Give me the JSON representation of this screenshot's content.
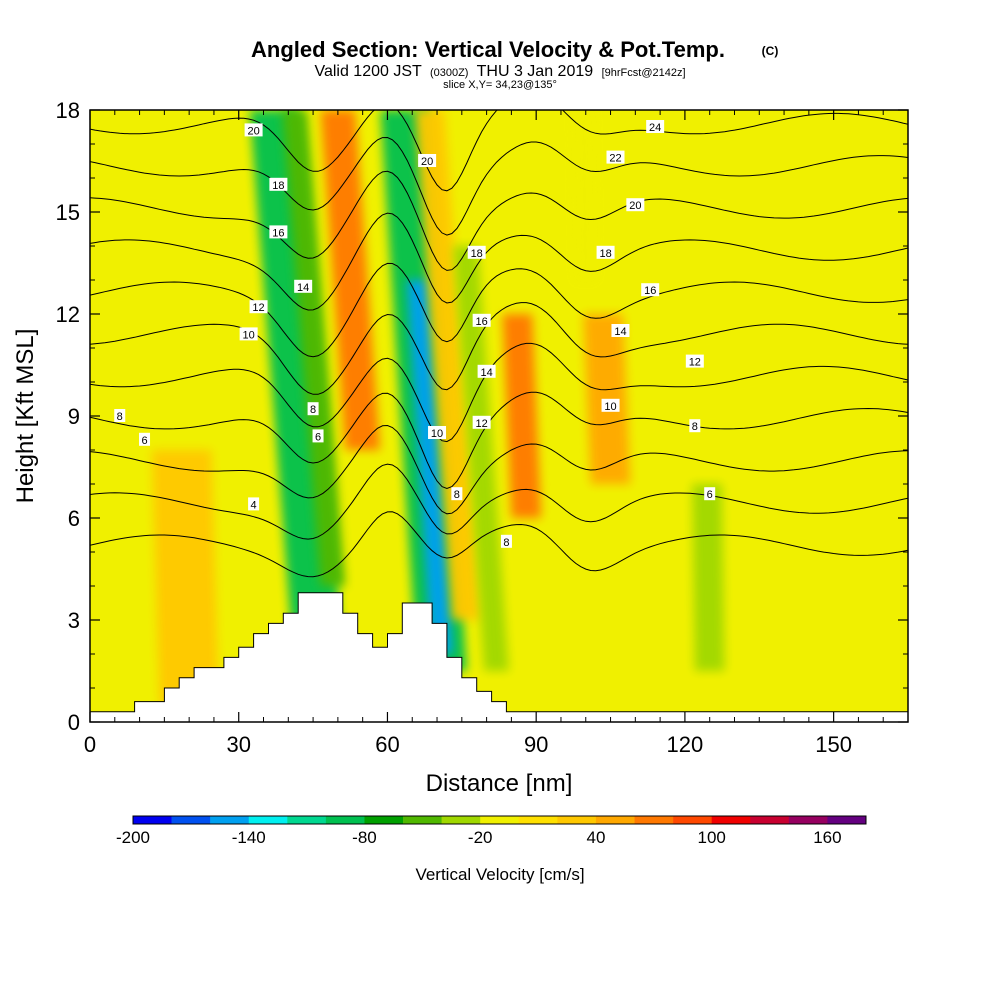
{
  "chart_data": {
    "type": "heatmap",
    "title": "Angled Section: Vertical Velocity & Pot.Temp.",
    "title_units": "(C)",
    "subtitle_parts": [
      "Valid 1200 JST",
      "(0300Z)",
      "THU 3 Jan 2019",
      "[9hrFcst@2142z]"
    ],
    "slice_label": "slice X,Y= 34,23@135°",
    "xlabel": "Distance [nm]",
    "ylabel": "Height [Kft MSL]",
    "xlim": [
      0,
      165
    ],
    "ylim": [
      0,
      18
    ],
    "x_ticks": [
      "0",
      "30",
      "60",
      "90",
      "120",
      "150"
    ],
    "x_tick_values": [
      0,
      30,
      60,
      90,
      120,
      150
    ],
    "y_ticks": [
      "0",
      "3",
      "6",
      "9",
      "12",
      "15",
      "18"
    ],
    "y_tick_values": [
      0,
      3,
      6,
      9,
      12,
      15,
      18
    ],
    "colorbar": {
      "label": "Vertical Velocity [cm/s]",
      "min": -200,
      "max": 180,
      "step": 20,
      "tick_labels": [
        "-200",
        "-140",
        "-80",
        "-20",
        "40",
        "100",
        "160"
      ],
      "tick_values": [
        -200,
        -140,
        -80,
        -20,
        40,
        100,
        160
      ],
      "colors": [
        "#0000f0",
        "#0050f0",
        "#00a0f0",
        "#00f0f0",
        "#00d890",
        "#00c050",
        "#00a000",
        "#50b800",
        "#a0d800",
        "#f0f000",
        "#ffe000",
        "#ffc800",
        "#ffa800",
        "#ff7800",
        "#ff4800",
        "#f00000",
        "#c80030",
        "#960060",
        "#640080"
      ]
    },
    "terrain_kft": [
      [
        0,
        0.3
      ],
      [
        9,
        0.3
      ],
      [
        9,
        0.6
      ],
      [
        15,
        0.6
      ],
      [
        15,
        1
      ],
      [
        18,
        1
      ],
      [
        18,
        1.3
      ],
      [
        21,
        1.3
      ],
      [
        21,
        1.6
      ],
      [
        27,
        1.6
      ],
      [
        27,
        1.9
      ],
      [
        30,
        1.9
      ],
      [
        30,
        2.2
      ],
      [
        33,
        2.2
      ],
      [
        33,
        2.6
      ],
      [
        36,
        2.6
      ],
      [
        36,
        2.9
      ],
      [
        39,
        2.9
      ],
      [
        39,
        3.2
      ],
      [
        42,
        3.2
      ],
      [
        42,
        3.8
      ],
      [
        51,
        3.8
      ],
      [
        51,
        3.2
      ],
      [
        54,
        3.2
      ],
      [
        54,
        2.6
      ],
      [
        57,
        2.6
      ],
      [
        57,
        2.2
      ],
      [
        60,
        2.2
      ],
      [
        60,
        2.6
      ],
      [
        63,
        2.6
      ],
      [
        63,
        3.5
      ],
      [
        69,
        3.5
      ],
      [
        69,
        2.9
      ],
      [
        72,
        2.9
      ],
      [
        72,
        1.9
      ],
      [
        75,
        1.9
      ],
      [
        75,
        1.3
      ],
      [
        78,
        1.3
      ],
      [
        78,
        0.9
      ],
      [
        81,
        0.9
      ],
      [
        81,
        0.6
      ],
      [
        84,
        0.6
      ],
      [
        84,
        0.3
      ],
      [
        165,
        0.3
      ]
    ],
    "velocity_features": [
      {
        "x": 46,
        "w": 5,
        "z0": 2.0,
        "z1": 18,
        "tilt": 0.55,
        "value": -90
      },
      {
        "x": 49,
        "w": 2.5,
        "z0": 4.0,
        "z1": 18,
        "tilt": 0.55,
        "value": -60
      },
      {
        "x": 55,
        "w": 3.5,
        "z0": 8.0,
        "z1": 18,
        "tilt": 0.5,
        "value": 70
      },
      {
        "x": 71,
        "w": 5,
        "z0": 1.5,
        "z1": 18,
        "tilt": 0.45,
        "value": -100
      },
      {
        "x": 71,
        "w": 2.2,
        "z0": 2.0,
        "z1": 13,
        "tilt": 0.45,
        "value": -150
      },
      {
        "x": 76,
        "w": 3,
        "z0": 3.0,
        "z1": 18,
        "tilt": 0.5,
        "value": 30
      },
      {
        "x": 82,
        "w": 2.5,
        "z0": 1.5,
        "z1": 14,
        "tilt": 0.5,
        "value": -40
      },
      {
        "x": 88,
        "w": 3,
        "z0": 6.0,
        "z1": 12,
        "tilt": 0.3,
        "value": 70
      },
      {
        "x": 105,
        "w": 4,
        "z0": 7.0,
        "z1": 12,
        "tilt": 0.3,
        "value": 45
      },
      {
        "x": 125,
        "w": 3,
        "z0": 1.5,
        "z1": 7,
        "tilt": 0.1,
        "value": -25
      },
      {
        "x": 20,
        "w": 6,
        "z0": 0.5,
        "z1": 8,
        "tilt": 0.2,
        "value": 35
      },
      {
        "x": 100,
        "w": 2,
        "z0": 13.0,
        "z1": 18,
        "tilt": 0.1,
        "value": -20
      }
    ],
    "pot_temp_levels": [
      4,
      6,
      8,
      10,
      12,
      14,
      16,
      18,
      20,
      22,
      24
    ],
    "contour_labels": [
      {
        "value": "24",
        "x": 114,
        "z": 17.5
      },
      {
        "value": "22",
        "x": 106,
        "z": 16.6
      },
      {
        "value": "20",
        "x": 33,
        "z": 17.4
      },
      {
        "value": "20",
        "x": 68,
        "z": 16.5
      },
      {
        "value": "20",
        "x": 110,
        "z": 15.2
      },
      {
        "value": "18",
        "x": 38,
        "z": 15.8
      },
      {
        "value": "18",
        "x": 78,
        "z": 13.8
      },
      {
        "value": "18",
        "x": 104,
        "z": 13.8
      },
      {
        "value": "16",
        "x": 38,
        "z": 14.4
      },
      {
        "value": "16",
        "x": 79,
        "z": 11.8
      },
      {
        "value": "16",
        "x": 113,
        "z": 12.7
      },
      {
        "value": "14",
        "x": 43,
        "z": 12.8
      },
      {
        "value": "14",
        "x": 80,
        "z": 10.3
      },
      {
        "value": "14",
        "x": 107,
        "z": 11.5
      },
      {
        "value": "12",
        "x": 34,
        "z": 12.2
      },
      {
        "value": "12",
        "x": 79,
        "z": 8.8
      },
      {
        "value": "12",
        "x": 122,
        "z": 10.6
      },
      {
        "value": "10",
        "x": 32,
        "z": 11.4
      },
      {
        "value": "10",
        "x": 70,
        "z": 8.5
      },
      {
        "value": "10",
        "x": 105,
        "z": 9.3
      },
      {
        "value": "8",
        "x": 6,
        "z": 9.0
      },
      {
        "value": "8",
        "x": 45,
        "z": 9.2
      },
      {
        "value": "8",
        "x": 74,
        "z": 6.7
      },
      {
        "value": "8",
        "x": 84,
        "z": 5.3
      },
      {
        "value": "8",
        "x": 122,
        "z": 8.7
      },
      {
        "value": "6",
        "x": 11,
        "z": 8.3
      },
      {
        "value": "6",
        "x": 46,
        "z": 8.4
      },
      {
        "value": "6",
        "x": 125,
        "z": 6.7
      },
      {
        "value": "4",
        "x": 33,
        "z": 6.4
      }
    ]
  }
}
